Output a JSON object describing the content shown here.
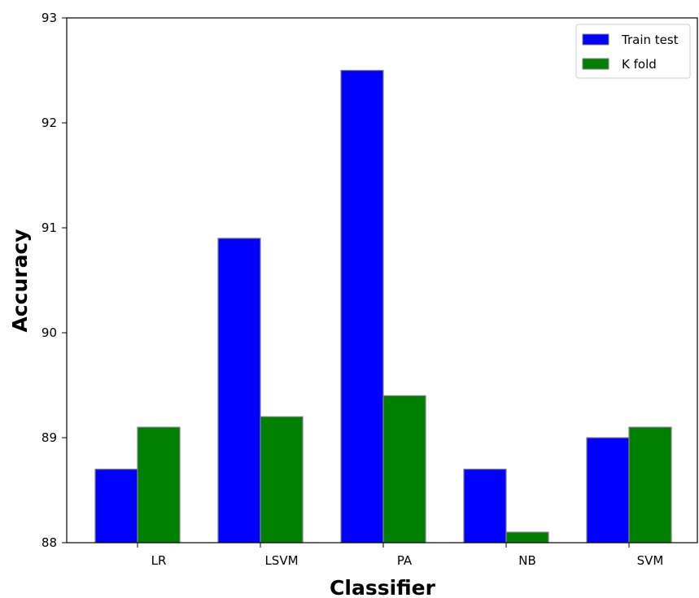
{
  "chart_data": {
    "type": "bar",
    "xlabel": "Classifier",
    "ylabel": "Accuracy",
    "categories": [
      "LR",
      "LSVM",
      "PA",
      "NB",
      "SVM"
    ],
    "series": [
      {
        "name": "Train test",
        "color": "#0000ff",
        "values": [
          88.7,
          90.9,
          92.5,
          88.7,
          89.0
        ]
      },
      {
        "name": "K fold",
        "color": "#008000",
        "values": [
          89.1,
          89.2,
          89.4,
          88.1,
          89.1
        ]
      }
    ],
    "ylim": [
      88,
      93
    ],
    "yticks": [
      88,
      89,
      90,
      91,
      92,
      93
    ],
    "grid": false,
    "legend_position": "top-right",
    "bar_edge_color": "#808080"
  }
}
